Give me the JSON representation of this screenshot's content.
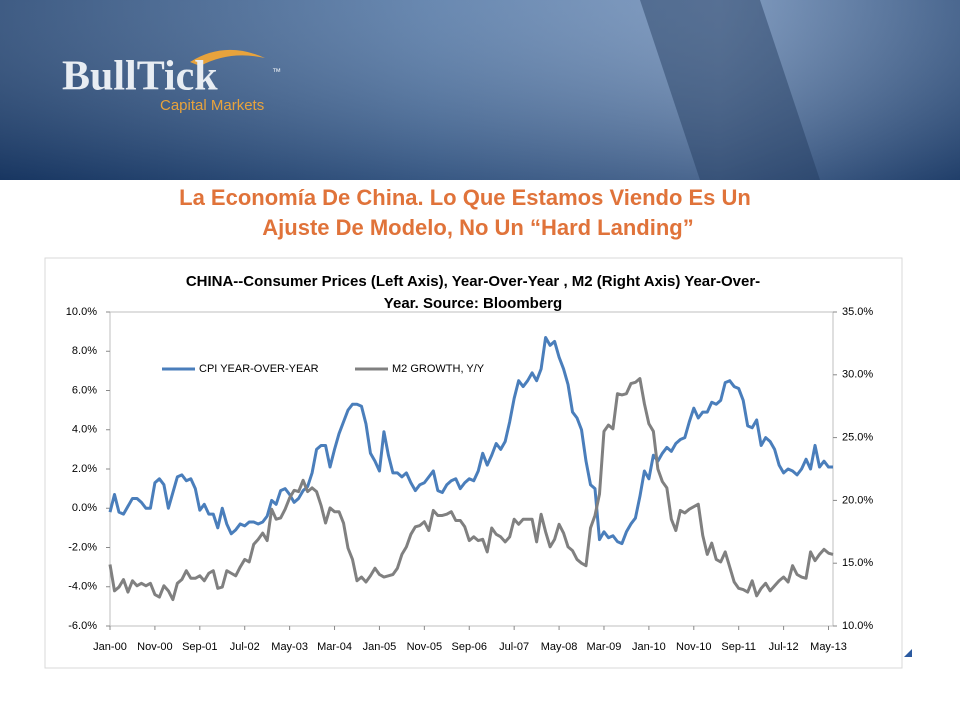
{
  "brand": {
    "name": "BullTick",
    "tm": "™",
    "tagline": "Capital Markets"
  },
  "heading": [
    "La Economía De China. Lo Que Estamos Viendo Es Un",
    "Ajuste De Modelo, No Un “Hard Landing”"
  ],
  "chart_data": {
    "type": "line",
    "title": [
      "CHINA--Consumer Prices (Left Axis), Year-Over-Year , M2 (Right Axis) Year-Over-",
      "Year. Source: Bloomberg"
    ],
    "categories": [
      "Jan-00",
      null,
      null,
      null,
      null,
      null,
      null,
      null,
      null,
      null,
      "Nov-00",
      null,
      null,
      null,
      null,
      null,
      null,
      null,
      null,
      null,
      "Sep-01",
      null,
      null,
      null,
      null,
      null,
      null,
      null,
      null,
      null,
      "Jul-02",
      null,
      null,
      null,
      null,
      null,
      null,
      null,
      null,
      null,
      "May-03",
      null,
      null,
      null,
      null,
      null,
      null,
      null,
      null,
      null,
      "Mar-04",
      null,
      null,
      null,
      null,
      null,
      null,
      null,
      null,
      null,
      "Jan-05",
      null,
      null,
      null,
      null,
      null,
      null,
      null,
      null,
      null,
      "Nov-05",
      null,
      null,
      null,
      null,
      null,
      null,
      null,
      null,
      null,
      "Sep-06",
      null,
      null,
      null,
      null,
      null,
      null,
      null,
      null,
      null,
      "Jul-07",
      null,
      null,
      null,
      null,
      null,
      null,
      null,
      null,
      null,
      "May-08",
      null,
      null,
      null,
      null,
      null,
      null,
      null,
      null,
      null,
      "Mar-09",
      null,
      null,
      null,
      null,
      null,
      null,
      null,
      null,
      null,
      "Jan-10",
      null,
      null,
      null,
      null,
      null,
      null,
      null,
      null,
      null,
      "Nov-10",
      null,
      null,
      null,
      null,
      null,
      null,
      null,
      null,
      null,
      "Sep-11",
      null,
      null,
      null,
      null,
      null,
      null,
      null,
      null,
      null,
      "Jul-12",
      null,
      null,
      null,
      null,
      null,
      null,
      null,
      null,
      null,
      "May-13",
      null
    ],
    "series": [
      {
        "name": "CPI YEAR-OVER-YEAR",
        "color": "#4a7ebb",
        "axis": "y",
        "values": [
          -0.2,
          0.7,
          -0.2,
          -0.3,
          0.1,
          0.5,
          0.5,
          0.3,
          0,
          0,
          1.3,
          1.5,
          1.2,
          0,
          0.8,
          1.6,
          1.7,
          1.4,
          1.5,
          1,
          -0.1,
          0.2,
          -0.3,
          -0.3,
          -1,
          0,
          -0.8,
          -1.3,
          -1.1,
          -0.8,
          -0.9,
          -0.7,
          -0.7,
          -0.8,
          -0.7,
          -0.4,
          0.4,
          0.2,
          0.9,
          1,
          0.7,
          0.3,
          0.5,
          0.9,
          1.1,
          1.8,
          3,
          3.2,
          3.2,
          2.1,
          3,
          3.8,
          4.4,
          5,
          5.3,
          5.3,
          5.2,
          4.3,
          2.8,
          2.4,
          1.9,
          3.9,
          2.7,
          1.8,
          1.8,
          1.6,
          1.8,
          1.3,
          0.9,
          1.2,
          1.3,
          1.6,
          1.9,
          0.9,
          0.8,
          1.2,
          1.4,
          1.5,
          1,
          1.3,
          1.5,
          1.4,
          1.9,
          2.8,
          2.2,
          2.7,
          3.3,
          3,
          3.4,
          4.4,
          5.6,
          6.5,
          6.2,
          6.5,
          6.9,
          6.5,
          7.1,
          8.7,
          8.3,
          8.5,
          7.7,
          7.1,
          6.3,
          4.9,
          4.6,
          4,
          2.4,
          1.2,
          1,
          -1.6,
          -1.2,
          -1.5,
          -1.4,
          -1.7,
          -1.8,
          -1.2,
          -0.8,
          -0.5,
          0.6,
          1.9,
          1.5,
          2.7,
          2.4,
          2.8,
          3.1,
          2.9,
          3.3,
          3.5,
          3.6,
          4.4,
          5.1,
          4.6,
          4.9,
          4.9,
          5.4,
          5.3,
          5.5,
          6.4,
          6.5,
          6.2,
          6.1,
          5.5,
          4.2,
          4.1,
          4.5,
          3.2,
          3.6,
          3.4,
          3,
          2.2,
          1.8,
          2,
          1.9,
          1.7,
          2,
          2.5,
          2,
          3.2,
          2.1,
          2.4,
          2.1,
          2.1
        ]
      },
      {
        "name": "M2 GROWTH, Y/Y",
        "color": "#808080",
        "axis": "y2",
        "values": [
          14.9,
          12.8,
          13.1,
          13.7,
          12.7,
          13.6,
          13.2,
          13.4,
          13.2,
          13.4,
          12.5,
          12.3,
          13.2,
          12.8,
          12.1,
          13.4,
          13.7,
          14.4,
          13.8,
          13.8,
          14.0,
          13.6,
          14.2,
          14.4,
          13.0,
          13.1,
          14.4,
          14.2,
          14.0,
          14.7,
          15.3,
          15.1,
          16.5,
          16.9,
          17.4,
          16.8,
          19.3,
          18.5,
          18.6,
          19.3,
          20.2,
          20.8,
          20.7,
          21.6,
          20.7,
          21.0,
          20.7,
          19.6,
          18.2,
          19.4,
          19.1,
          19.1,
          18.2,
          16.2,
          15.3,
          13.6,
          13.9,
          13.5,
          14.0,
          14.6,
          14.1,
          13.9,
          14.0,
          14.1,
          14.6,
          15.7,
          16.3,
          17.3,
          17.9,
          18.0,
          18.3,
          17.6,
          19.2,
          18.8,
          18.8,
          18.9,
          19.1,
          18.4,
          18.4,
          17.9,
          16.8,
          17.1,
          16.8,
          16.9,
          15.9,
          17.8,
          17.3,
          17.1,
          16.7,
          17.1,
          18.5,
          18.1,
          18.5,
          18.5,
          18.5,
          16.7,
          18.9,
          17.5,
          16.3,
          16.9,
          18.1,
          17.4,
          16.3,
          16.0,
          15.3,
          15.0,
          14.8,
          17.8,
          18.8,
          20.5,
          25.5,
          26.0,
          25.7,
          28.5,
          28.4,
          28.5,
          29.3,
          29.4,
          29.7,
          27.7,
          26.1,
          25.5,
          22.5,
          21.5,
          21.0,
          18.5,
          17.6,
          19.2,
          19.0,
          19.3,
          19.5,
          19.7,
          17.2,
          15.7,
          16.6,
          15.3,
          15.1,
          15.9,
          14.7,
          13.5,
          13.0,
          12.9,
          12.7,
          13.6,
          12.4,
          13.0,
          13.4,
          12.8,
          13.2,
          13.6,
          13.9,
          13.5,
          14.8,
          14.1,
          13.9,
          13.8,
          15.9,
          15.2,
          15.7,
          16.1,
          15.8,
          15.7
        ]
      }
    ],
    "ylim": [
      -6,
      10
    ],
    "yticks": [
      {
        "value": -6,
        "label": "-6.0%"
      },
      {
        "value": -4,
        "label": "-4.0%"
      },
      {
        "value": -2,
        "label": "-2.0%"
      },
      {
        "value": 0,
        "label": "0.0%"
      },
      {
        "value": 2,
        "label": "2.0%"
      },
      {
        "value": 4,
        "label": "4.0%"
      },
      {
        "value": 6,
        "label": "6.0%"
      },
      {
        "value": 8,
        "label": "8.0%"
      },
      {
        "value": 10,
        "label": "10.0%"
      }
    ],
    "y2lim": [
      10,
      35
    ],
    "y2ticks": [
      {
        "value": 10,
        "label": "10.0%"
      },
      {
        "value": 15,
        "label": "15.0%"
      },
      {
        "value": 20,
        "label": "20.0%"
      },
      {
        "value": 25,
        "label": "25.0%"
      },
      {
        "value": 30,
        "label": "30.0%"
      },
      {
        "value": 35,
        "label": "35.0%"
      }
    ],
    "grid": false,
    "legend": "top"
  }
}
